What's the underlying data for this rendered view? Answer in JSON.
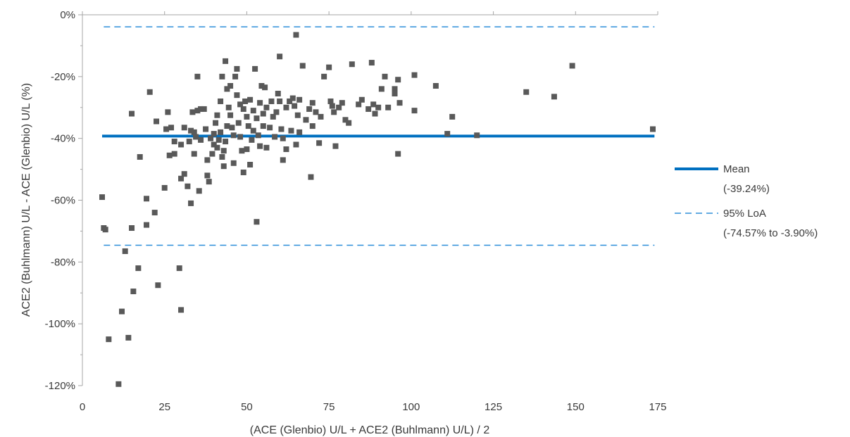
{
  "chart_data": {
    "type": "scatter",
    "title": "",
    "xlabel": "(ACE (Glenbio) U/L + ACE2 (Buhlmann) U/L) / 2",
    "ylabel": "ACE2 (Buhlmann) U/L - ACE (Glenbio) U/L (%)",
    "xlim": [
      0,
      175
    ],
    "ylim": [
      -120,
      0
    ],
    "x_ticks": [
      0,
      25,
      50,
      75,
      100,
      125,
      150,
      175
    ],
    "y_ticks": [
      0,
      -20,
      -40,
      -60,
      -80,
      -100,
      -120
    ],
    "x_tick_labels": [
      "0",
      "25",
      "50",
      "75",
      "100",
      "125",
      "150",
      "175"
    ],
    "y_tick_labels": [
      "0%",
      "-20%",
      "-40%",
      "-60%",
      "-80%",
      "-100%",
      "-120%"
    ],
    "grid": false,
    "legend_position": "right",
    "colors": {
      "points": "#595959",
      "mean_line": "#0070c0",
      "loa_line": "#2e8fd9",
      "axis": "#a6a6a6",
      "text": "#3a3a3a"
    },
    "reference_lines": [
      {
        "name": "Mean",
        "label": "(-39.24%)",
        "value": -39.24,
        "style": "solid"
      },
      {
        "name": "95% LoA",
        "label": "(-74.57% to -3.90%)",
        "values": [
          -74.57,
          -3.9
        ],
        "style": "dashed"
      }
    ],
    "series": [
      {
        "marker": "square",
        "points": [
          [
            6,
            -59
          ],
          [
            6.5,
            -69
          ],
          [
            7,
            -69.5
          ],
          [
            8,
            -105
          ],
          [
            11,
            -119.5
          ],
          [
            12,
            -96
          ],
          [
            13,
            -76.5
          ],
          [
            14,
            -104.5
          ],
          [
            15,
            -32
          ],
          [
            15,
            -69
          ],
          [
            15.5,
            -89.5
          ],
          [
            17,
            -82
          ],
          [
            17.5,
            -46
          ],
          [
            19.5,
            -59.5
          ],
          [
            19.5,
            -68
          ],
          [
            20.5,
            -25
          ],
          [
            22,
            -64
          ],
          [
            22.5,
            -34.5
          ],
          [
            23,
            -87.5
          ],
          [
            25,
            -56
          ],
          [
            25.5,
            -37
          ],
          [
            26,
            -31.5
          ],
          [
            26.5,
            -45.5
          ],
          [
            27,
            -36.5
          ],
          [
            28,
            -41
          ],
          [
            28,
            -45
          ],
          [
            29.5,
            -82
          ],
          [
            30,
            -42
          ],
          [
            30,
            -53
          ],
          [
            30,
            -95.5
          ],
          [
            31,
            -36.5
          ],
          [
            31,
            -51.5
          ],
          [
            32,
            -55.5
          ],
          [
            32.5,
            -41
          ],
          [
            33,
            -37.5
          ],
          [
            33,
            -61
          ],
          [
            33.5,
            -31.5
          ],
          [
            34,
            -45
          ],
          [
            34,
            -38
          ],
          [
            34.5,
            -39.5
          ],
          [
            35,
            -20
          ],
          [
            35,
            -31
          ],
          [
            35.5,
            -57
          ],
          [
            36,
            -40.5
          ],
          [
            36,
            -30.5
          ],
          [
            37,
            -30.5
          ],
          [
            37.5,
            -37
          ],
          [
            38,
            -47
          ],
          [
            38,
            -52
          ],
          [
            38.5,
            -54
          ],
          [
            39,
            -40
          ],
          [
            39.5,
            -45
          ],
          [
            40,
            -38.5
          ],
          [
            40,
            -42
          ],
          [
            40.5,
            -35
          ],
          [
            41,
            -32.5
          ],
          [
            41,
            -43
          ],
          [
            41.5,
            -40.5
          ],
          [
            42,
            -28
          ],
          [
            42,
            -38
          ],
          [
            42.5,
            -20
          ],
          [
            42.5,
            -46
          ],
          [
            43,
            -44
          ],
          [
            43,
            -49
          ],
          [
            43.5,
            -15
          ],
          [
            43.5,
            -41
          ],
          [
            44,
            -24
          ],
          [
            44,
            -36
          ],
          [
            44.5,
            -30
          ],
          [
            45,
            -32.5
          ],
          [
            45,
            -23
          ],
          [
            45.5,
            -36.5
          ],
          [
            46,
            -48
          ],
          [
            46,
            -39
          ],
          [
            46.5,
            -20
          ],
          [
            47,
            -17.5
          ],
          [
            47,
            -26
          ],
          [
            47.5,
            -35
          ],
          [
            48,
            -29
          ],
          [
            48,
            -39.5
          ],
          [
            48.5,
            -44
          ],
          [
            49,
            -30.5
          ],
          [
            49,
            -51
          ],
          [
            49.5,
            -28
          ],
          [
            50,
            -33
          ],
          [
            50,
            -43.5
          ],
          [
            50.5,
            -36
          ],
          [
            51,
            -48.5
          ],
          [
            51,
            -27.5
          ],
          [
            51.5,
            -40.5
          ],
          [
            52,
            -31
          ],
          [
            52,
            -37.5
          ],
          [
            52.5,
            -17.5
          ],
          [
            53,
            -67
          ],
          [
            53,
            -33.5
          ],
          [
            53.5,
            -39
          ],
          [
            54,
            -28.5
          ],
          [
            54,
            -42.5
          ],
          [
            54.5,
            -23
          ],
          [
            55,
            -32
          ],
          [
            55,
            -36
          ],
          [
            55.5,
            -23.5
          ],
          [
            56,
            -43
          ],
          [
            56,
            -30
          ],
          [
            57,
            -36.5
          ],
          [
            57.5,
            -28
          ],
          [
            58,
            -33
          ],
          [
            58.5,
            -39.5
          ],
          [
            59,
            -31.5
          ],
          [
            59.5,
            -25.5
          ],
          [
            60,
            -13.5
          ],
          [
            60,
            -28
          ],
          [
            60.5,
            -37
          ],
          [
            61,
            -47
          ],
          [
            61,
            -40
          ],
          [
            62,
            -43.5
          ],
          [
            62,
            -30
          ],
          [
            63,
            -28
          ],
          [
            63.5,
            -37.5
          ],
          [
            64,
            -27
          ],
          [
            64.5,
            -29.5
          ],
          [
            65,
            -42
          ],
          [
            65,
            -6.5
          ],
          [
            65.5,
            -32.5
          ],
          [
            66,
            -27.5
          ],
          [
            66,
            -38
          ],
          [
            67,
            -16.5
          ],
          [
            68,
            -34
          ],
          [
            69,
            -30.5
          ],
          [
            69.5,
            -52.5
          ],
          [
            70,
            -28.5
          ],
          [
            70,
            -36
          ],
          [
            71,
            -31.5
          ],
          [
            72,
            -41.5
          ],
          [
            72.5,
            -33
          ],
          [
            73.5,
            -20
          ],
          [
            75,
            -17
          ],
          [
            75.5,
            -28
          ],
          [
            76,
            -29.5
          ],
          [
            76.5,
            -31.5
          ],
          [
            77,
            -42.5
          ],
          [
            78,
            -30
          ],
          [
            79,
            -28.5
          ],
          [
            80,
            -34
          ],
          [
            81,
            -35
          ],
          [
            82,
            -16
          ],
          [
            84,
            -29
          ],
          [
            85,
            -27.5
          ],
          [
            87,
            -30.5
          ],
          [
            88,
            -15.5
          ],
          [
            88.5,
            -29
          ],
          [
            89,
            -32
          ],
          [
            90,
            -30
          ],
          [
            91,
            -24
          ],
          [
            92,
            -20
          ],
          [
            93,
            -30
          ],
          [
            95,
            -24
          ],
          [
            95,
            -25.5
          ],
          [
            96,
            -21
          ],
          [
            96,
            -45
          ],
          [
            96.5,
            -28.5
          ],
          [
            101,
            -19.5
          ],
          [
            101,
            -31
          ],
          [
            107.5,
            -23
          ],
          [
            111,
            -38.5
          ],
          [
            112.5,
            -33
          ],
          [
            120,
            -39
          ],
          [
            135,
            -25
          ],
          [
            143.5,
            -26.5
          ],
          [
            149,
            -16.5
          ],
          [
            173.5,
            -37
          ]
        ]
      }
    ]
  }
}
